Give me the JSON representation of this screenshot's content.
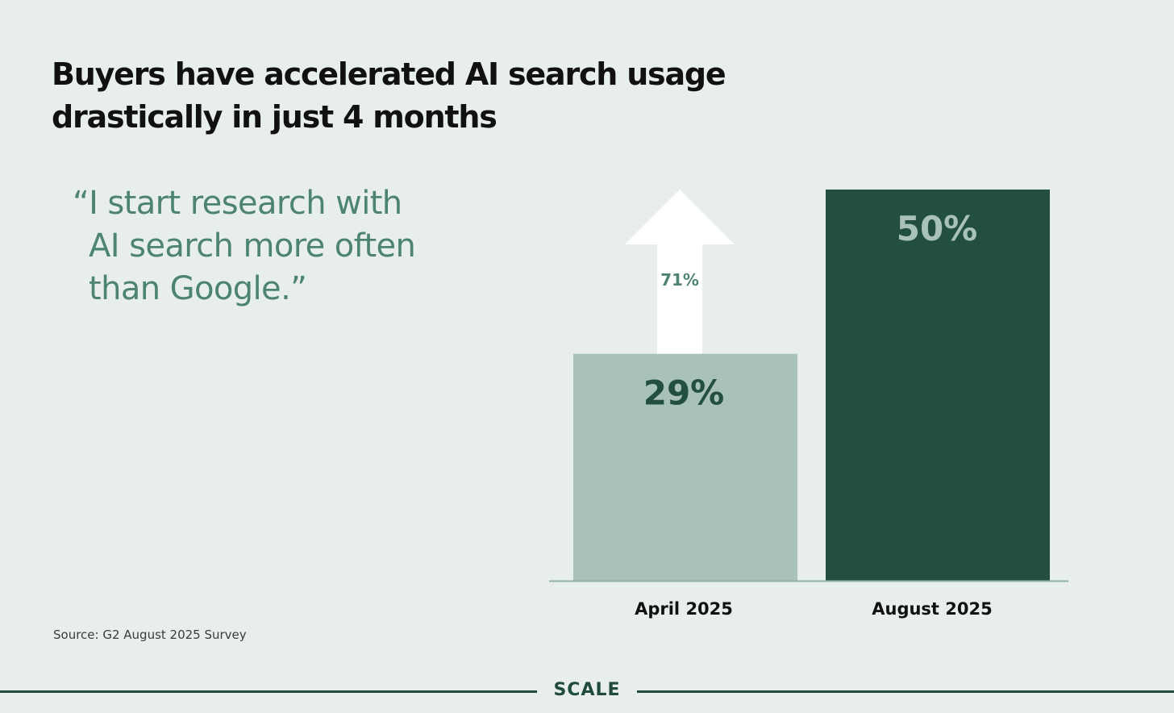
{
  "title_lines": [
    "Buyers have accelerated AI search usage",
    "drastically in just 4 months"
  ],
  "quote_lines": [
    "“I start research with",
    "AI search more often",
    "than Google.”"
  ],
  "source": "Source: G2 August 2025 Survey",
  "brand": "SCALE",
  "colors": {
    "background": "#e8eeed",
    "bar_april": "#a8c1ba",
    "bar_august": "#234f40",
    "quote_text": "#4d8470",
    "footer": "#1f4a3d"
  },
  "chart_data": {
    "type": "bar",
    "categories": [
      "April 2025",
      "August 2025"
    ],
    "values": [
      29,
      50
    ],
    "value_labels": [
      "29%",
      "50%"
    ],
    "ylim": [
      0,
      50
    ],
    "annotation": {
      "type": "up-arrow",
      "label": "71%",
      "from_category": "April 2025",
      "to_value": 50
    },
    "colors": [
      "#a8c1ba",
      "#234f40"
    ],
    "label_colors": [
      "#234f40",
      "#a8c1ba"
    ],
    "grid": false
  }
}
